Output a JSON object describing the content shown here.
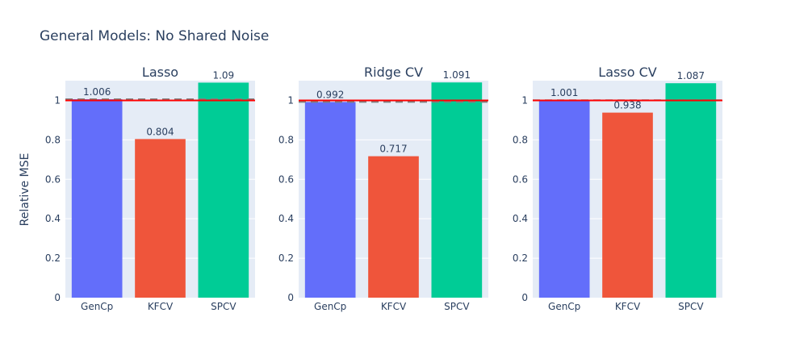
{
  "chart_data": {
    "type": "bar",
    "title": "General Models: No Shared Noise",
    "ylabel": "Relative MSE",
    "ylim": [
      0,
      1.1
    ],
    "yticks": [
      "0",
      "0.2",
      "0.4",
      "0.6",
      "0.8",
      "1"
    ],
    "colors": {
      "GenCp": "#636efa",
      "KFCV": "#ef553b",
      "SPCV": "#00cc96",
      "reference_line": "#ff0000",
      "gencp_dashed_line": "#808080",
      "plot_bg": "#e5ecf6",
      "grid": "#ffffff",
      "text": "#2a3f5f"
    },
    "panels": [
      {
        "title": "Lasso",
        "categories": [
          "GenCp",
          "KFCV",
          "SPCV"
        ],
        "values": [
          1.006,
          0.804,
          1.09
        ],
        "labels": [
          "1.006",
          "0.804",
          "1.09"
        ],
        "reference_line": 1,
        "dashed_line": 1.006
      },
      {
        "title": "Ridge CV",
        "categories": [
          "GenCp",
          "KFCV",
          "SPCV"
        ],
        "values": [
          0.992,
          0.717,
          1.091
        ],
        "labels": [
          "0.992",
          "0.717",
          "1.091"
        ],
        "reference_line": 1,
        "dashed_line": 0.992
      },
      {
        "title": "Lasso CV",
        "categories": [
          "GenCp",
          "KFCV",
          "SPCV"
        ],
        "values": [
          1.001,
          0.938,
          1.087
        ],
        "labels": [
          "1.001",
          "0.938",
          "1.087"
        ],
        "reference_line": 1,
        "dashed_line": 1.001
      }
    ]
  }
}
